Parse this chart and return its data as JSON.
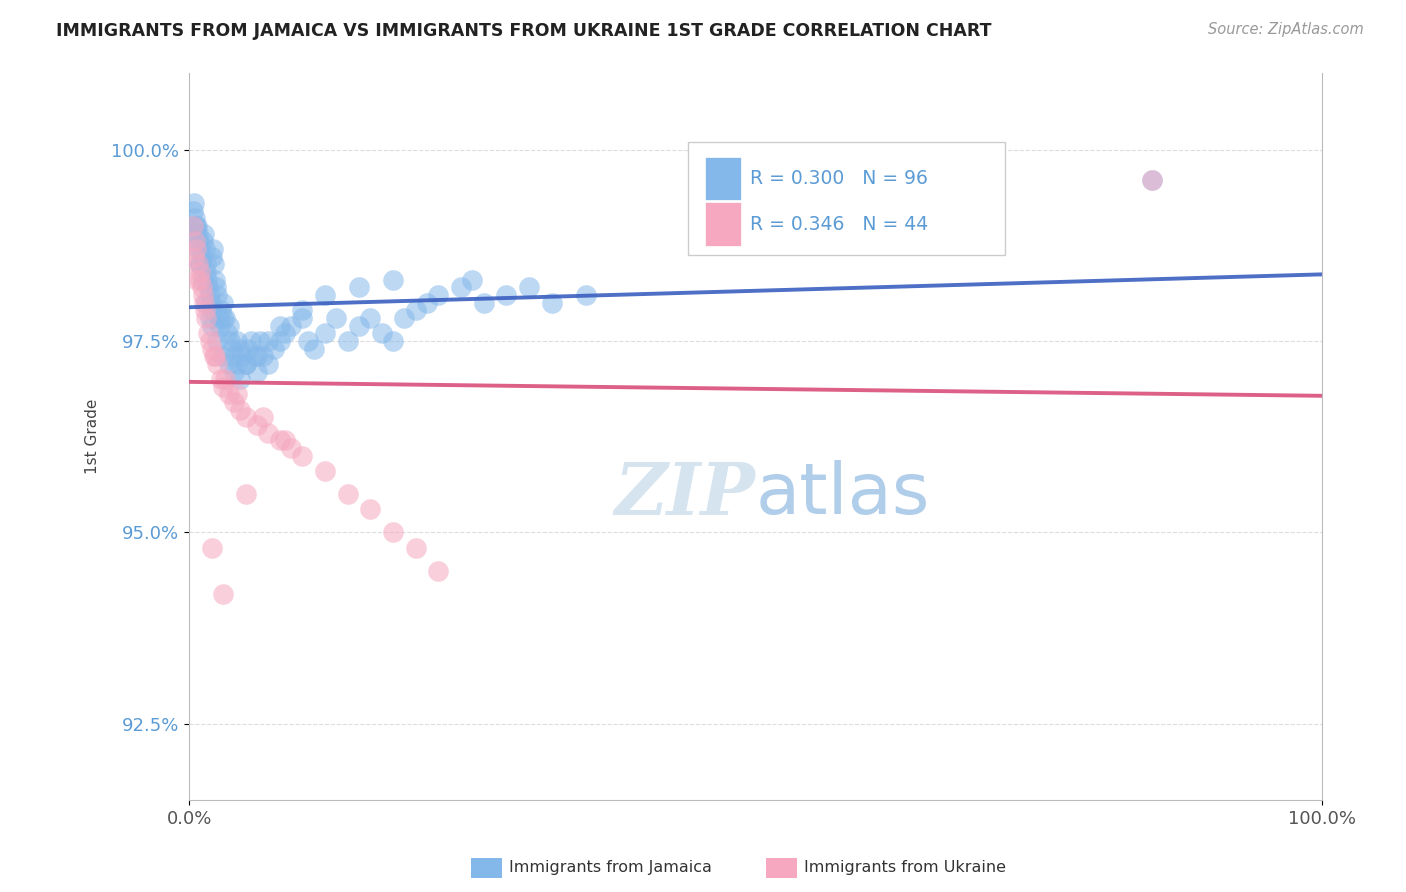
{
  "title": "IMMIGRANTS FROM JAMAICA VS IMMIGRANTS FROM UKRAINE 1ST GRADE CORRELATION CHART",
  "source": "Source: ZipAtlas.com",
  "ylabel": "1st Grade",
  "xlim": [
    0.0,
    100.0
  ],
  "ylim": [
    91.5,
    101.0
  ],
  "yticks": [
    92.5,
    95.0,
    97.5,
    100.0
  ],
  "ytick_labels": [
    "92.5%",
    "95.0%",
    "97.5%",
    "100.0%"
  ],
  "jamaica_R": 0.3,
  "jamaica_N": 96,
  "ukraine_R": 0.346,
  "ukraine_N": 44,
  "jamaica_color": "#85B8EA",
  "ukraine_color": "#F5A8C0",
  "jamaica_line_color": "#3A5FBF",
  "ukraine_line_color": "#D94F7A",
  "legend_label_jamaica": "Immigrants from Jamaica",
  "legend_label_ukraine": "Immigrants from Ukraine",
  "watermark_color": "#D8E6F3",
  "grid_color": "#DDDDDD",
  "ytick_color": "#5B9BD5",
  "xtick_color": "#555555",
  "source_color": "#999999",
  "title_color": "#222222"
}
